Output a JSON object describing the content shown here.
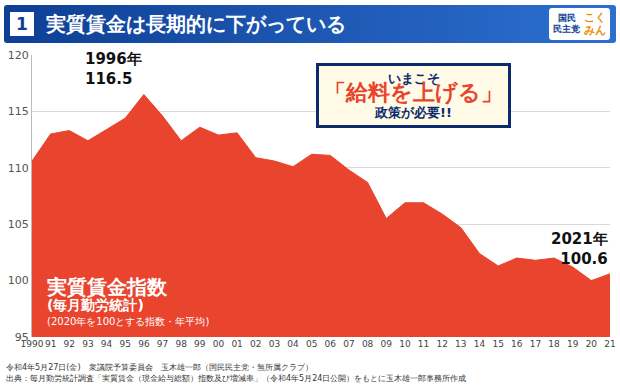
{
  "header": {
    "number": "1",
    "title": "実質賃金は長期的に下がっている",
    "logo": [
      "国民",
      "民主党",
      "こく",
      "みん"
    ]
  },
  "chart_data": {
    "type": "area",
    "color": "#e8442e",
    "categories": [
      "1990",
      "91",
      "92",
      "93",
      "94",
      "95",
      "96",
      "97",
      "98",
      "99",
      "00",
      "01",
      "02",
      "03",
      "04",
      "05",
      "06",
      "07",
      "08",
      "09",
      "10",
      "11",
      "12",
      "13",
      "14",
      "15",
      "16",
      "17",
      "18",
      "19",
      "20",
      "21"
    ],
    "values": [
      110.6,
      113.0,
      113.3,
      112.4,
      113.4,
      114.4,
      116.5,
      114.6,
      112.4,
      113.6,
      112.9,
      113.1,
      110.9,
      110.6,
      110.1,
      111.2,
      111.1,
      109.8,
      108.7,
      105.5,
      106.9,
      106.9,
      105.9,
      104.7,
      102.4,
      101.3,
      102.0,
      101.8,
      102.0,
      101.2,
      100.0,
      100.6
    ],
    "ylim": [
      95,
      120
    ],
    "yticks": [
      95,
      100,
      105,
      110,
      115,
      120
    ],
    "grid": true,
    "annotations": [
      {
        "category": "96",
        "label": "1996年",
        "value": 116.5
      },
      {
        "category": "21",
        "label": "2021年",
        "value": 100.6
      }
    ],
    "callout": [
      "いまこそ",
      "「給料を上げる」",
      "政策が必要!!"
    ],
    "series_label": [
      "実質賃金指数",
      "(毎月勤労統計)",
      "(2020年を100とする指数・年平均)"
    ]
  },
  "footer": [
    "令和4年5月27日(金)　衆議院予算委員会　玉木雄一郎（国民民主党・無所属クラブ）",
    "出典：毎月勤労統計調査「実質賃金（現金給与総額）指数及び増減率」（令和4年5月24日公開）をもとに玉木雄一郎事務所作成"
  ]
}
